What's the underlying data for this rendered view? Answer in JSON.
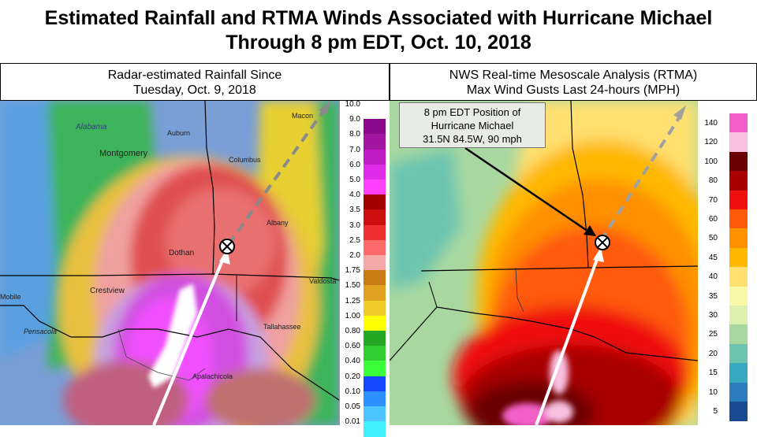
{
  "title": {
    "line1": "Estimated Rainfall and RTMA Winds Associated with Hurricane Michael",
    "line2": "Through 8 pm EDT, Oct. 10, 2018"
  },
  "left_panel": {
    "heading_line1": "Radar-estimated Rainfall Since",
    "heading_line2": "Tuesday, Oct. 9, 2018",
    "places": [
      "Alabama",
      "Montgomery",
      "Auburn",
      "Columbus",
      "Macon",
      "Albany",
      "Dothan",
      "Crestview",
      "Mobile",
      "Pensacola",
      "Tallahassee",
      "Valdosta",
      "Apalachicola"
    ],
    "legend": [
      {
        "label": "10.0",
        "color": "#ffffff"
      },
      {
        "label": "9.0",
        "color": "#8b0a8b"
      },
      {
        "label": "8.0",
        "color": "#a316a3"
      },
      {
        "label": "7.0",
        "color": "#c01dc6"
      },
      {
        "label": "6.0",
        "color": "#e02ce8"
      },
      {
        "label": "5.0",
        "color": "#ff40ff"
      },
      {
        "label": "4.0",
        "color": "#a40000"
      },
      {
        "label": "3.5",
        "color": "#cc1010"
      },
      {
        "label": "3.0",
        "color": "#ef3030"
      },
      {
        "label": "2.5",
        "color": "#ff6a6a"
      },
      {
        "label": "2.0",
        "color": "#f4a8a8"
      },
      {
        "label": "1.75",
        "color": "#c87a14"
      },
      {
        "label": "1.50",
        "color": "#e0a020"
      },
      {
        "label": "1.25",
        "color": "#f0cc28"
      },
      {
        "label": "1.00",
        "color": "#ffff00"
      },
      {
        "label": "0.80",
        "color": "#26a826"
      },
      {
        "label": "0.60",
        "color": "#32cd32"
      },
      {
        "label": "0.40",
        "color": "#3cff3c"
      },
      {
        "label": "0.20",
        "color": "#1448ff"
      },
      {
        "label": "0.10",
        "color": "#2c90ff"
      },
      {
        "label": "0.05",
        "color": "#4cc4ff"
      },
      {
        "label": "0.01",
        "color": "#40f0ff"
      }
    ]
  },
  "right_panel": {
    "heading_line1": "NWS Real-time Mesoscale Analysis (RTMA)",
    "heading_line2": "Max Wind Gusts Last 24-hours (MPH)",
    "callout_line1": "8 pm EDT Position of",
    "callout_line2": "Hurricane Michael",
    "callout_line3": "31.5N 84.5W, 90 mph",
    "legend": [
      {
        "label": "140",
        "color": "#f060c8"
      },
      {
        "label": "120",
        "color": "#f8c0e0"
      },
      {
        "label": "100",
        "color": "#6a0000"
      },
      {
        "label": "80",
        "color": "#a80000"
      },
      {
        "label": "70",
        "color": "#ef1010"
      },
      {
        "label": "60",
        "color": "#ff5a0a"
      },
      {
        "label": "50",
        "color": "#ff9000"
      },
      {
        "label": "45",
        "color": "#ffb800"
      },
      {
        "label": "40",
        "color": "#ffe070"
      },
      {
        "label": "35",
        "color": "#f8f8a8"
      },
      {
        "label": "30",
        "color": "#dcf0b0"
      },
      {
        "label": "25",
        "color": "#a8d8a0"
      },
      {
        "label": "20",
        "color": "#6cc4b0"
      },
      {
        "label": "15",
        "color": "#36a8c0"
      },
      {
        "label": "10",
        "color": "#2c7cc0"
      },
      {
        "label": "5",
        "color": "#1c4a90"
      }
    ]
  }
}
